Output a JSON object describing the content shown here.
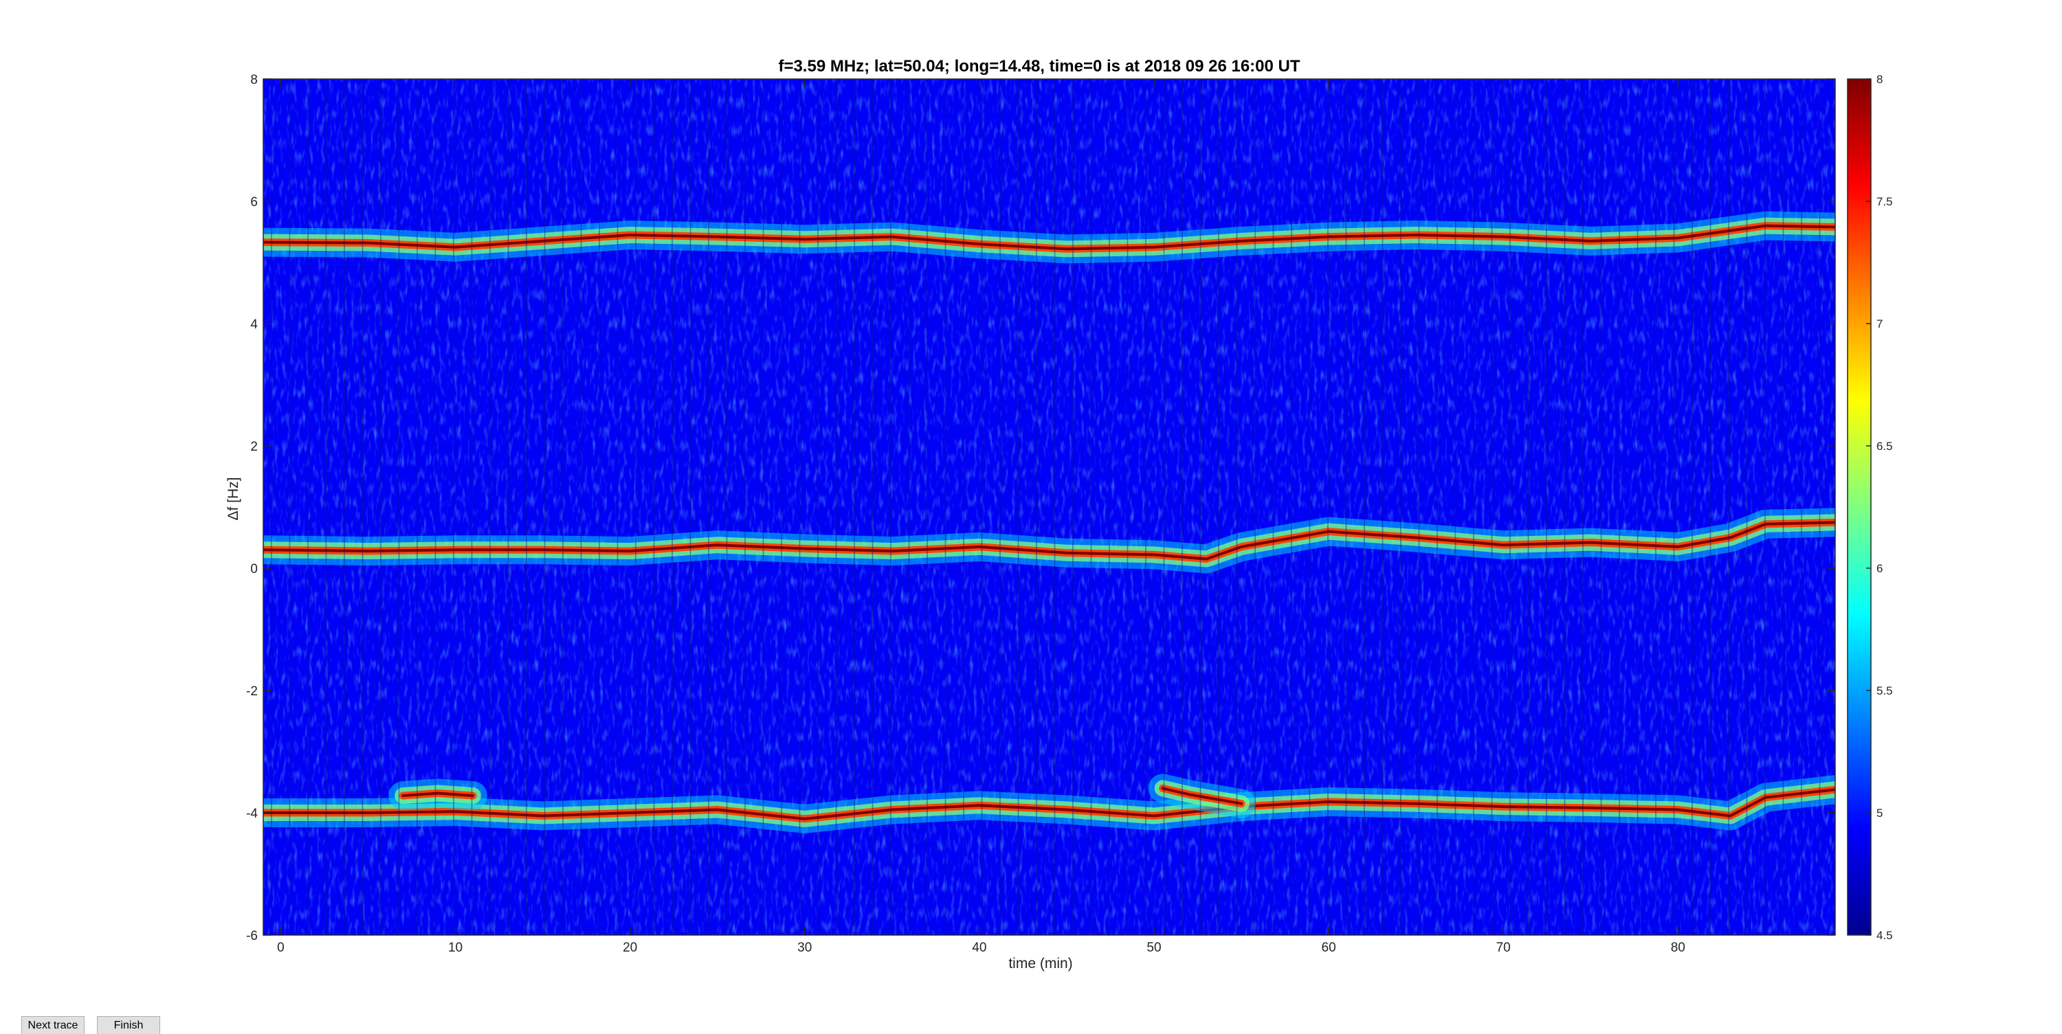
{
  "window": {
    "buttons": {
      "next_trace_label": "Next trace",
      "finish_label": "Finish"
    }
  },
  "chart_data": {
    "type": "heatmap",
    "title": "f=3.59 MHz;  lat=50.04; long=14.48, time=0 is at 2018 09 26 16:00 UT",
    "xlabel": "time (min)",
    "ylabel": "Δf [Hz]",
    "xlim": [
      -1,
      89
    ],
    "ylim": [
      -6,
      8
    ],
    "xticks": [
      0,
      10,
      20,
      30,
      40,
      50,
      60,
      70,
      80
    ],
    "xtick_labels": [
      "0",
      "10",
      "20",
      "30",
      "40",
      "50",
      "60",
      "70",
      "80"
    ],
    "yticks": [
      8,
      6,
      4,
      2,
      0,
      -2,
      -4,
      -6
    ],
    "ytick_labels": [
      "8",
      "6",
      "4",
      "2",
      "0",
      "-2",
      "-4",
      "-6"
    ],
    "colorbar": {
      "colormap": "jet",
      "range": [
        4.5,
        8
      ],
      "ticks": [
        8,
        7.5,
        7,
        6.5,
        6,
        5.5,
        5,
        4.5
      ],
      "tick_labels": [
        "8",
        "7.5",
        "7",
        "6.5",
        "6",
        "5.5",
        "5",
        "4.5"
      ]
    },
    "background_level": 4.9,
    "traces": [
      {
        "peak_level": 8,
        "points": [
          [
            -1,
            5.33
          ],
          [
            5,
            5.32
          ],
          [
            10,
            5.25
          ],
          [
            15,
            5.35
          ],
          [
            20,
            5.45
          ],
          [
            25,
            5.42
          ],
          [
            30,
            5.38
          ],
          [
            35,
            5.42
          ],
          [
            40,
            5.3
          ],
          [
            45,
            5.22
          ],
          [
            50,
            5.25
          ],
          [
            55,
            5.35
          ],
          [
            60,
            5.42
          ],
          [
            65,
            5.45
          ],
          [
            70,
            5.42
          ],
          [
            75,
            5.35
          ],
          [
            80,
            5.4
          ],
          [
            85,
            5.6
          ],
          [
            89,
            5.58
          ]
        ]
      },
      {
        "peak_level": 8,
        "points": [
          [
            -1,
            0.3
          ],
          [
            5,
            0.28
          ],
          [
            10,
            0.3
          ],
          [
            15,
            0.3
          ],
          [
            20,
            0.28
          ],
          [
            25,
            0.38
          ],
          [
            30,
            0.32
          ],
          [
            35,
            0.28
          ],
          [
            40,
            0.35
          ],
          [
            45,
            0.25
          ],
          [
            50,
            0.22
          ],
          [
            53,
            0.15
          ],
          [
            55,
            0.35
          ],
          [
            60,
            0.6
          ],
          [
            65,
            0.5
          ],
          [
            70,
            0.38
          ],
          [
            75,
            0.42
          ],
          [
            80,
            0.35
          ],
          [
            83,
            0.5
          ],
          [
            85,
            0.72
          ],
          [
            89,
            0.75
          ]
        ]
      },
      {
        "peak_level": 8,
        "points": [
          [
            -1,
            -4.0
          ],
          [
            5,
            -4.0
          ],
          [
            10,
            -3.98
          ],
          [
            15,
            -4.05
          ],
          [
            20,
            -4.0
          ],
          [
            25,
            -3.95
          ],
          [
            30,
            -4.1
          ],
          [
            35,
            -3.95
          ],
          [
            40,
            -3.88
          ],
          [
            45,
            -3.95
          ],
          [
            50,
            -4.05
          ],
          [
            55,
            -3.9
          ],
          [
            60,
            -3.82
          ],
          [
            65,
            -3.85
          ],
          [
            70,
            -3.9
          ],
          [
            75,
            -3.92
          ],
          [
            80,
            -3.95
          ],
          [
            83,
            -4.05
          ],
          [
            85,
            -3.75
          ],
          [
            89,
            -3.62
          ]
        ]
      },
      {
        "peak_level": 8,
        "points": [
          [
            7,
            -3.72
          ],
          [
            9,
            -3.68
          ],
          [
            11,
            -3.72
          ]
        ]
      },
      {
        "peak_level": 8,
        "points": [
          [
            50.5,
            -3.6
          ],
          [
            52,
            -3.7
          ],
          [
            54,
            -3.8
          ],
          [
            55,
            -3.85
          ]
        ]
      }
    ]
  }
}
